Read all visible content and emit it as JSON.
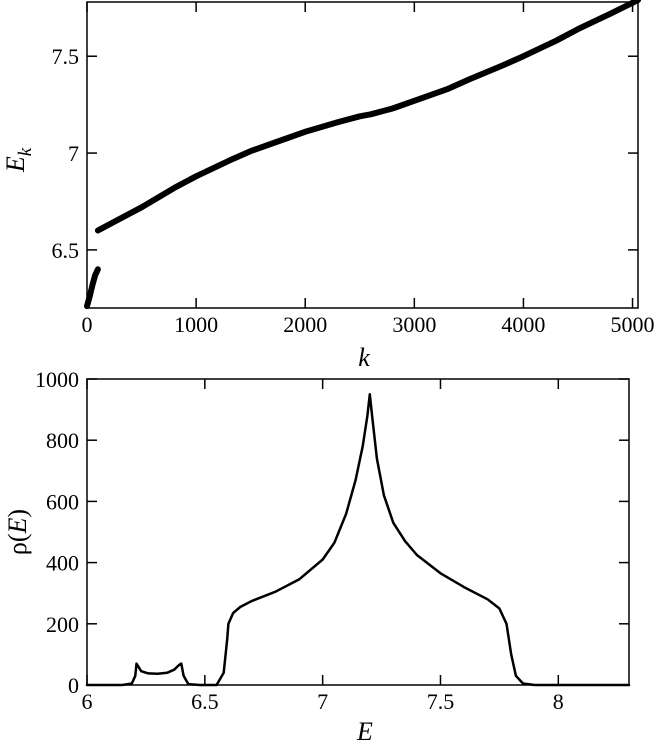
{
  "chart_data": [
    {
      "type": "line",
      "title": "",
      "xlabel": "k",
      "ylabel_main": "E",
      "ylabel_sub": "k",
      "xlim": [
        0,
        5050
      ],
      "ylim": [
        6.2,
        7.78
      ],
      "xticks": [
        0,
        1000,
        2000,
        3000,
        4000,
        5000
      ],
      "xtick_labels": [
        "0",
        "1000",
        "2000",
        "3000",
        "4000",
        "5000"
      ],
      "yticks": [
        6.5,
        7,
        7.5
      ],
      "ytick_labels": [
        "6.5",
        "7",
        "7.5"
      ],
      "grid": false,
      "line_color": "#000000",
      "series": [
        {
          "x": [
            0,
            25,
            50,
            75,
            100
          ],
          "y": [
            6.21,
            6.26,
            6.32,
            6.37,
            6.4
          ]
        },
        {
          "x": [
            100,
            300,
            500,
            800,
            1000,
            1300,
            1500,
            1800,
            2000,
            2300,
            2500,
            2600,
            2800,
            3000,
            3300,
            3500,
            3800,
            4000,
            4300,
            4500,
            4800,
            5050
          ],
          "y": [
            6.6,
            6.66,
            6.72,
            6.82,
            6.88,
            6.96,
            7.01,
            7.07,
            7.11,
            7.16,
            7.19,
            7.2,
            7.23,
            7.27,
            7.33,
            7.38,
            7.45,
            7.5,
            7.58,
            7.64,
            7.72,
            7.79
          ]
        }
      ]
    },
    {
      "type": "line",
      "title": "",
      "xlabel": "E",
      "ylabel_pre": "ρ(",
      "ylabel_var": "E",
      "ylabel_post": ")",
      "xlim": [
        6.0,
        8.3
      ],
      "ylim": [
        0,
        1000
      ],
      "xticks": [
        6,
        6.5,
        7,
        7.5,
        8
      ],
      "xtick_labels": [
        "6",
        "6.5",
        "7",
        "7.5",
        "8"
      ],
      "yticks": [
        0,
        200,
        400,
        600,
        800,
        1000
      ],
      "ytick_labels": [
        "0",
        "200",
        "400",
        "600",
        "800",
        "1000"
      ],
      "grid": false,
      "line_color": "#000000",
      "series": [
        {
          "x": [
            6.0,
            6.15,
            6.19,
            6.205,
            6.21,
            6.23,
            6.26,
            6.3,
            6.34,
            6.37,
            6.39,
            6.4,
            6.41,
            6.43,
            6.48,
            6.55,
            6.58,
            6.595,
            6.6,
            6.62,
            6.65,
            6.7,
            6.8,
            6.9,
            7.0,
            7.05,
            7.1,
            7.14,
            7.17,
            7.19,
            7.2,
            7.21,
            7.23,
            7.26,
            7.3,
            7.35,
            7.4,
            7.5,
            7.6,
            7.7,
            7.75,
            7.78,
            7.8,
            7.82,
            7.85,
            7.9,
            8.0,
            8.3
          ],
          "y": [
            0,
            0,
            5,
            30,
            70,
            45,
            38,
            37,
            40,
            50,
            65,
            70,
            30,
            3,
            0,
            0,
            40,
            150,
            200,
            235,
            255,
            275,
            305,
            345,
            410,
            465,
            560,
            670,
            780,
            880,
            950,
            880,
            740,
            620,
            530,
            470,
            425,
            365,
            320,
            280,
            250,
            200,
            100,
            30,
            5,
            0,
            0,
            0
          ]
        }
      ]
    }
  ]
}
